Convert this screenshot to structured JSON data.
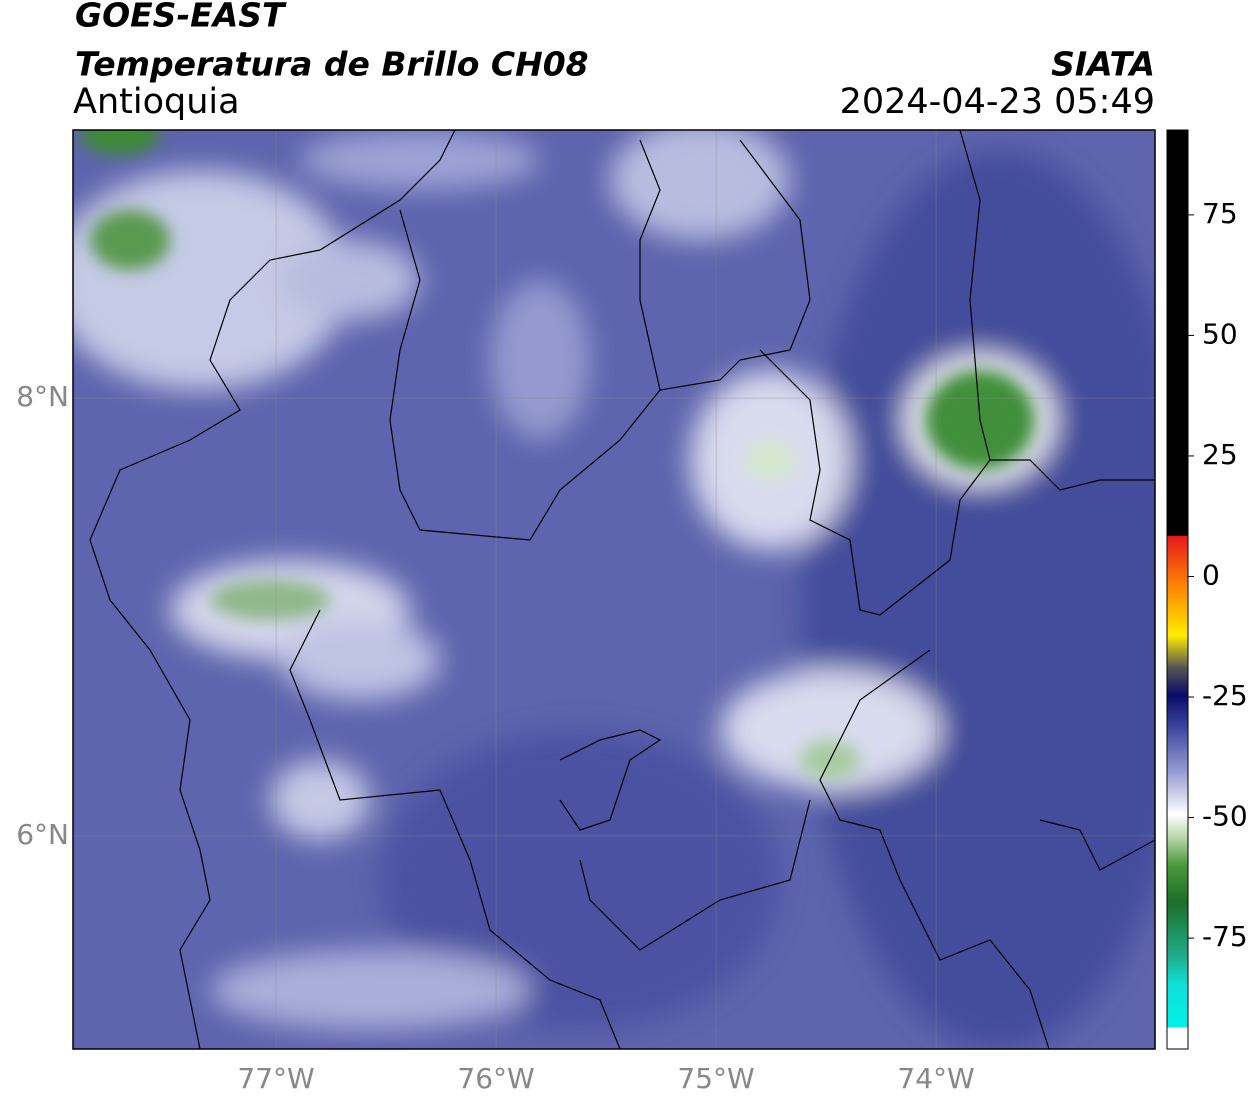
{
  "header": {
    "title": "GOES-EAST",
    "subtitle": "Temperatura de Brillo CH08",
    "region": "Antioquia",
    "agency": "SIATA",
    "timestamp": "2024-04-23 05:49"
  },
  "map": {
    "xlim": [
      -77.923,
      -73.005
    ],
    "ylim": [
      5.027,
      9.224
    ],
    "xticks": [
      {
        "value": -77,
        "label": "77°W"
      },
      {
        "value": -76,
        "label": "76°W"
      },
      {
        "value": -75,
        "label": "75°W"
      },
      {
        "value": -74,
        "label": "74°W"
      }
    ],
    "yticks": [
      {
        "value": 6,
        "label": "6°N"
      },
      {
        "value": 8,
        "label": "8°N"
      }
    ],
    "grid": true
  },
  "colorbar": {
    "lim": [
      -98,
      92.6
    ],
    "ticks": [
      -75,
      -50,
      -25,
      0,
      25,
      50,
      75
    ]
  }
}
